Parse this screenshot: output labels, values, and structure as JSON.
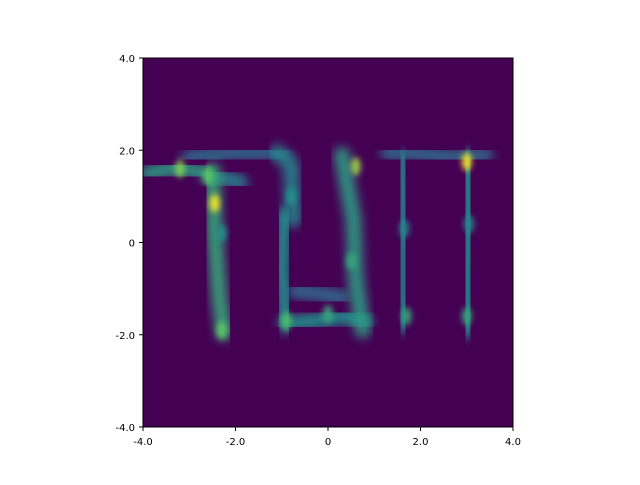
{
  "chart_data": {
    "type": "heatmap",
    "title": "",
    "xlabel": "",
    "ylabel": "",
    "xlim": [
      -4.0,
      4.0
    ],
    "ylim": [
      -4.0,
      4.0
    ],
    "x_ticks": [
      -4.0,
      -2.0,
      0,
      2.0,
      4.0
    ],
    "y_ticks": [
      -4.0,
      -2.0,
      0,
      2.0,
      4.0
    ],
    "x_tick_labels": [
      "-4.0",
      "-2.0",
      "0",
      "2.0",
      "4.0"
    ],
    "y_tick_labels": [
      "-4.0",
      "-2.0",
      "0",
      "2.0",
      "4.0"
    ],
    "grid": false,
    "colormap": "viridis",
    "background_value_color": "#440154",
    "density_strokes": [
      {
        "points": [
          [
            -3.9,
            1.5
          ],
          [
            -3.3,
            1.62
          ],
          [
            -2.7,
            1.52
          ]
        ],
        "intensity": 0.55
      },
      {
        "points": [
          [
            -2.6,
            1.45
          ],
          [
            -2.2,
            1.38
          ],
          [
            -1.9,
            1.3
          ]
        ],
        "intensity": 0.45
      },
      {
        "points": [
          [
            -3.0,
            1.85
          ],
          [
            -2.0,
            1.95
          ],
          [
            -1.0,
            1.95
          ]
        ],
        "intensity": 0.35
      },
      {
        "points": [
          [
            -2.5,
            1.55
          ],
          [
            -2.45,
            0.2
          ],
          [
            -2.35,
            -1.2
          ],
          [
            -2.25,
            -1.95
          ]
        ],
        "intensity": 0.6
      },
      {
        "points": [
          [
            -1.1,
            1.95
          ],
          [
            -0.8,
            1.7
          ],
          [
            -0.75,
            0.5
          ]
        ],
        "intensity": 0.45
      },
      {
        "points": [
          [
            -0.95,
            0.6
          ],
          [
            -1.0,
            -0.6
          ],
          [
            -0.9,
            -1.8
          ]
        ],
        "intensity": 0.5
      },
      {
        "points": [
          [
            -0.9,
            -1.75
          ],
          [
            -0.3,
            -1.7
          ],
          [
            0.3,
            -1.6
          ],
          [
            0.8,
            -1.7
          ]
        ],
        "intensity": 0.5
      },
      {
        "points": [
          [
            -0.7,
            -1.05
          ],
          [
            -0.2,
            -1.1
          ],
          [
            0.3,
            -1.2
          ]
        ],
        "intensity": 0.35
      },
      {
        "points": [
          [
            0.3,
            1.9
          ],
          [
            0.55,
            0.5
          ],
          [
            0.6,
            -0.8
          ],
          [
            0.75,
            -1.9
          ]
        ],
        "intensity": 0.55
      },
      {
        "points": [
          [
            1.3,
            1.95
          ],
          [
            1.8,
            1.95
          ],
          [
            2.6,
            1.85
          ],
          [
            3.4,
            1.9
          ]
        ],
        "intensity": 0.35
      },
      {
        "points": [
          [
            1.6,
            1.8
          ],
          [
            1.65,
            0.2
          ],
          [
            1.65,
            -1.8
          ]
        ],
        "intensity": 0.45
      },
      {
        "points": [
          [
            3.0,
            1.85
          ],
          [
            3.05,
            0.5
          ],
          [
            3.0,
            -0.8
          ],
          [
            3.0,
            -1.9
          ]
        ],
        "intensity": 0.5
      }
    ],
    "peaks": [
      {
        "x": -2.45,
        "y": 0.85,
        "intensity": 1.0
      },
      {
        "x": -3.2,
        "y": 1.6,
        "intensity": 0.8
      },
      {
        "x": -2.6,
        "y": 1.45,
        "intensity": 0.75
      },
      {
        "x": -2.3,
        "y": -1.9,
        "intensity": 0.75
      },
      {
        "x": 0.6,
        "y": 1.65,
        "intensity": 0.85
      },
      {
        "x": 3.0,
        "y": 1.75,
        "intensity": 1.0
      },
      {
        "x": -0.9,
        "y": -1.7,
        "intensity": 0.7
      },
      {
        "x": 0.0,
        "y": -1.55,
        "intensity": 0.6
      },
      {
        "x": 0.5,
        "y": -0.4,
        "intensity": 0.6
      },
      {
        "x": 1.7,
        "y": -1.6,
        "intensity": 0.6
      },
      {
        "x": 3.0,
        "y": -1.6,
        "intensity": 0.6
      },
      {
        "x": 1.65,
        "y": 0.3,
        "intensity": 0.45
      },
      {
        "x": 3.05,
        "y": 0.4,
        "intensity": 0.45
      },
      {
        "x": -2.3,
        "y": 0.2,
        "intensity": 0.5
      },
      {
        "x": -0.8,
        "y": 1.0,
        "intensity": 0.5
      }
    ]
  }
}
